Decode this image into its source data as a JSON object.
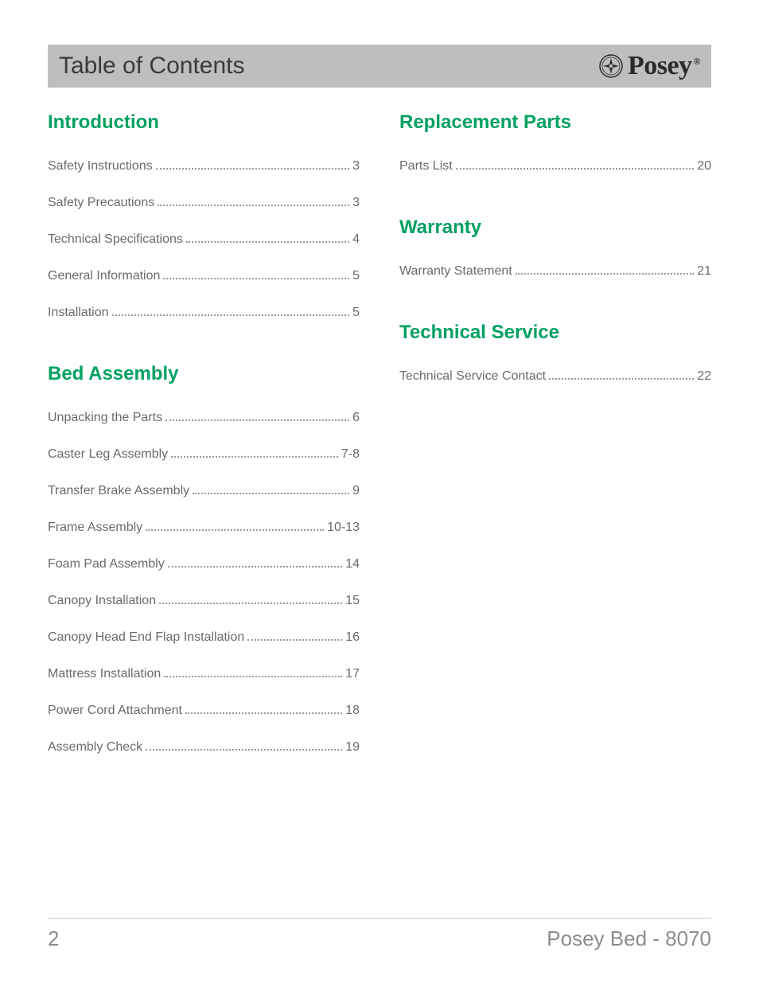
{
  "header": {
    "title": "Table of Contents",
    "brand": "Posey",
    "registered_mark": "®"
  },
  "colors": {
    "section_title": "#00a160",
    "header_bg": "#bdbebf",
    "text": "#6a6a6a",
    "footer_text": "#8d8d8d",
    "rule": "#c9c9c9"
  },
  "left_sections": [
    {
      "title": "Introduction",
      "items": [
        {
          "label": "Safety Instructions",
          "page": "3"
        },
        {
          "label": "Safety Precautions",
          "page": "3"
        },
        {
          "label": "Technical Specifications",
          "page": "4"
        },
        {
          "label": "General Information",
          "page": "5"
        },
        {
          "label": "Installation",
          "page": "5"
        }
      ]
    },
    {
      "title": "Bed Assembly",
      "items": [
        {
          "label": "Unpacking the Parts",
          "page": "6"
        },
        {
          "label": "Caster Leg Assembly",
          "page": "7-8"
        },
        {
          "label": "Transfer Brake Assembly",
          "page": "9"
        },
        {
          "label": "Frame Assembly",
          "page": "10-13"
        },
        {
          "label": "Foam Pad Assembly",
          "page": "14"
        },
        {
          "label": "Canopy Installation",
          "page": "15"
        },
        {
          "label": "Canopy Head End Flap Installation",
          "page": "16"
        },
        {
          "label": "Mattress Installation",
          "page": "17"
        },
        {
          "label": "Power Cord Attachment",
          "page": "18"
        },
        {
          "label": "Assembly Check",
          "page": "19"
        }
      ]
    }
  ],
  "right_sections": [
    {
      "title": "Replacement Parts",
      "items": [
        {
          "label": "Parts List",
          "page": "20"
        }
      ]
    },
    {
      "title": "Warranty",
      "items": [
        {
          "label": "Warranty Statement",
          "page": "21"
        }
      ]
    },
    {
      "title": "Technical Service",
      "items": [
        {
          "label": "Technical Service Contact",
          "page": "22"
        }
      ]
    }
  ],
  "footer": {
    "page_number": "2",
    "doc_title": "Posey Bed - 8070"
  }
}
